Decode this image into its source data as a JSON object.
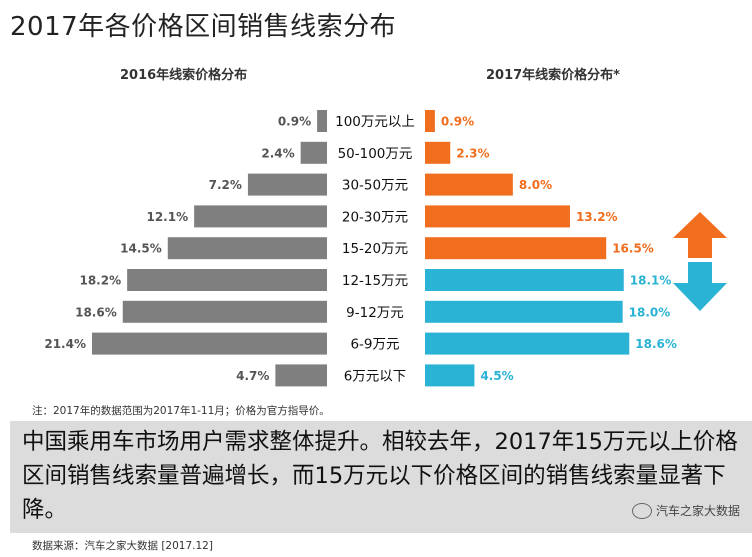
{
  "header": {
    "title": "2017年各价格区间销售线索分布"
  },
  "chart_data": {
    "type": "bar",
    "categories": [
      "100万元以上",
      "50-100万元",
      "30-50万元",
      "20-30万元",
      "15-20万元",
      "12-15万元",
      "9-12万元",
      "6-9万元",
      "6万元以下"
    ],
    "series": [
      {
        "name": "2016年线索价格分布",
        "values": [
          0.9,
          2.4,
          7.2,
          12.1,
          14.5,
          18.2,
          18.6,
          21.4,
          4.7
        ],
        "labels": [
          "0.9%",
          "2.4%",
          "7.2%",
          "12.1%",
          "14.5%",
          "18.2%",
          "18.6%",
          "21.4%",
          "4.7%"
        ]
      },
      {
        "name": "2017年线索价格分布*",
        "values": [
          0.9,
          2.3,
          8.0,
          13.2,
          16.5,
          18.1,
          18.0,
          18.6,
          4.5
        ],
        "labels": [
          "0.9%",
          "2.3%",
          "8.0%",
          "13.2%",
          "16.5%",
          "18.1%",
          "18.0%",
          "18.6%",
          "4.5%"
        ]
      }
    ],
    "unit": "%",
    "colors": {
      "left": "#7f7f7f",
      "right_up": "#f06e1e",
      "right_down": "#2bb3d5",
      "arrow_up": "#f06e1e",
      "arrow_down": "#2bb3d5"
    }
  },
  "note": "注：2017年的数据范围为2017年1-11月；价格为官方指导价。",
  "summary": {
    "text": "中国乘用车市场用户需求整体提升。相较去年，2017年15万元以上价格区间销售线索量普遍增长，而15万元以下价格区间的销售线索量显著下降。"
  },
  "brand": "汽车之家大数据",
  "source": "数据来源：汽车之家大数据  [2017.12]"
}
